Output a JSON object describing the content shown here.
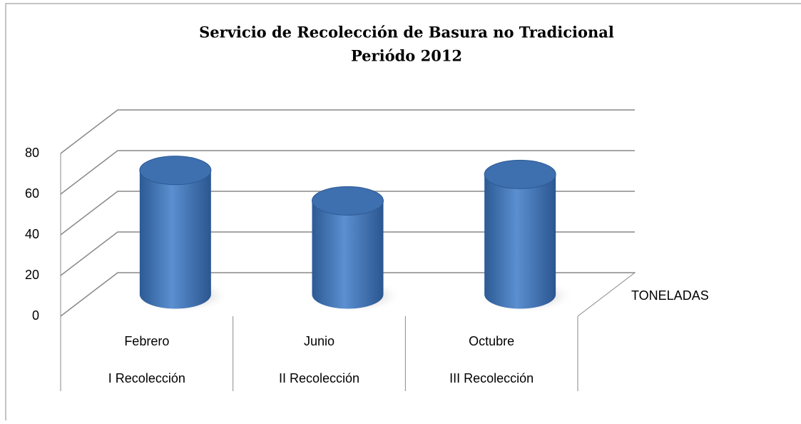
{
  "chart_data": {
    "type": "bar3d-cylinder",
    "title": [
      "Servicio de Recolección de Basura no Tradicional",
      "Periódo 2012"
    ],
    "categories": [
      [
        "Febrero",
        "I Recolección"
      ],
      [
        "Junio",
        "II Recolección"
      ],
      [
        "Octubre",
        "III Recolección"
      ]
    ],
    "series": [
      {
        "name": "TONELADAS",
        "color": "#4f81bd",
        "values": [
          61,
          46,
          59
        ]
      }
    ],
    "ylim": [
      0,
      80
    ],
    "yticks": [
      0,
      20,
      40,
      60,
      80
    ],
    "grid": true
  }
}
